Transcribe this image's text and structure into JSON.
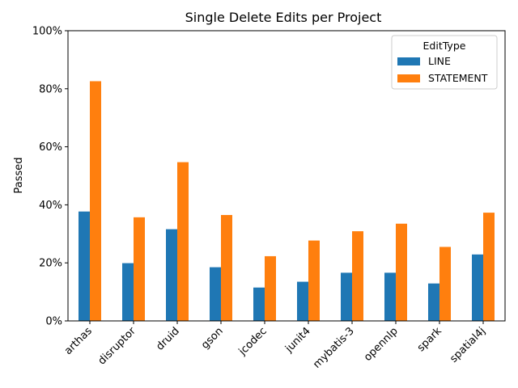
{
  "chart_data": {
    "type": "bar",
    "title": "Single Delete Edits per Project",
    "xlabel": "",
    "ylabel": "Passed",
    "ylim": [
      0,
      1
    ],
    "yticks": [
      0,
      0.2,
      0.4,
      0.6,
      0.8,
      1.0
    ],
    "ytick_labels": [
      "0%",
      "20%",
      "40%",
      "60%",
      "80%",
      "100%"
    ],
    "categories": [
      "arthas",
      "disruptor",
      "druid",
      "gson",
      "jcodec",
      "junit4",
      "mybatis-3",
      "opennlp",
      "spark",
      "spatial4j"
    ],
    "series": [
      {
        "name": "LINE",
        "color": "#1f77b4",
        "values": [
          0.377,
          0.199,
          0.316,
          0.185,
          0.115,
          0.135,
          0.166,
          0.166,
          0.129,
          0.229
        ]
      },
      {
        "name": "STATEMENT",
        "color": "#ff7f0e",
        "values": [
          0.826,
          0.357,
          0.547,
          0.365,
          0.223,
          0.277,
          0.309,
          0.335,
          0.255,
          0.373
        ]
      }
    ],
    "legend": {
      "title": "EditType",
      "position": "top-right"
    },
    "grid": false
  }
}
